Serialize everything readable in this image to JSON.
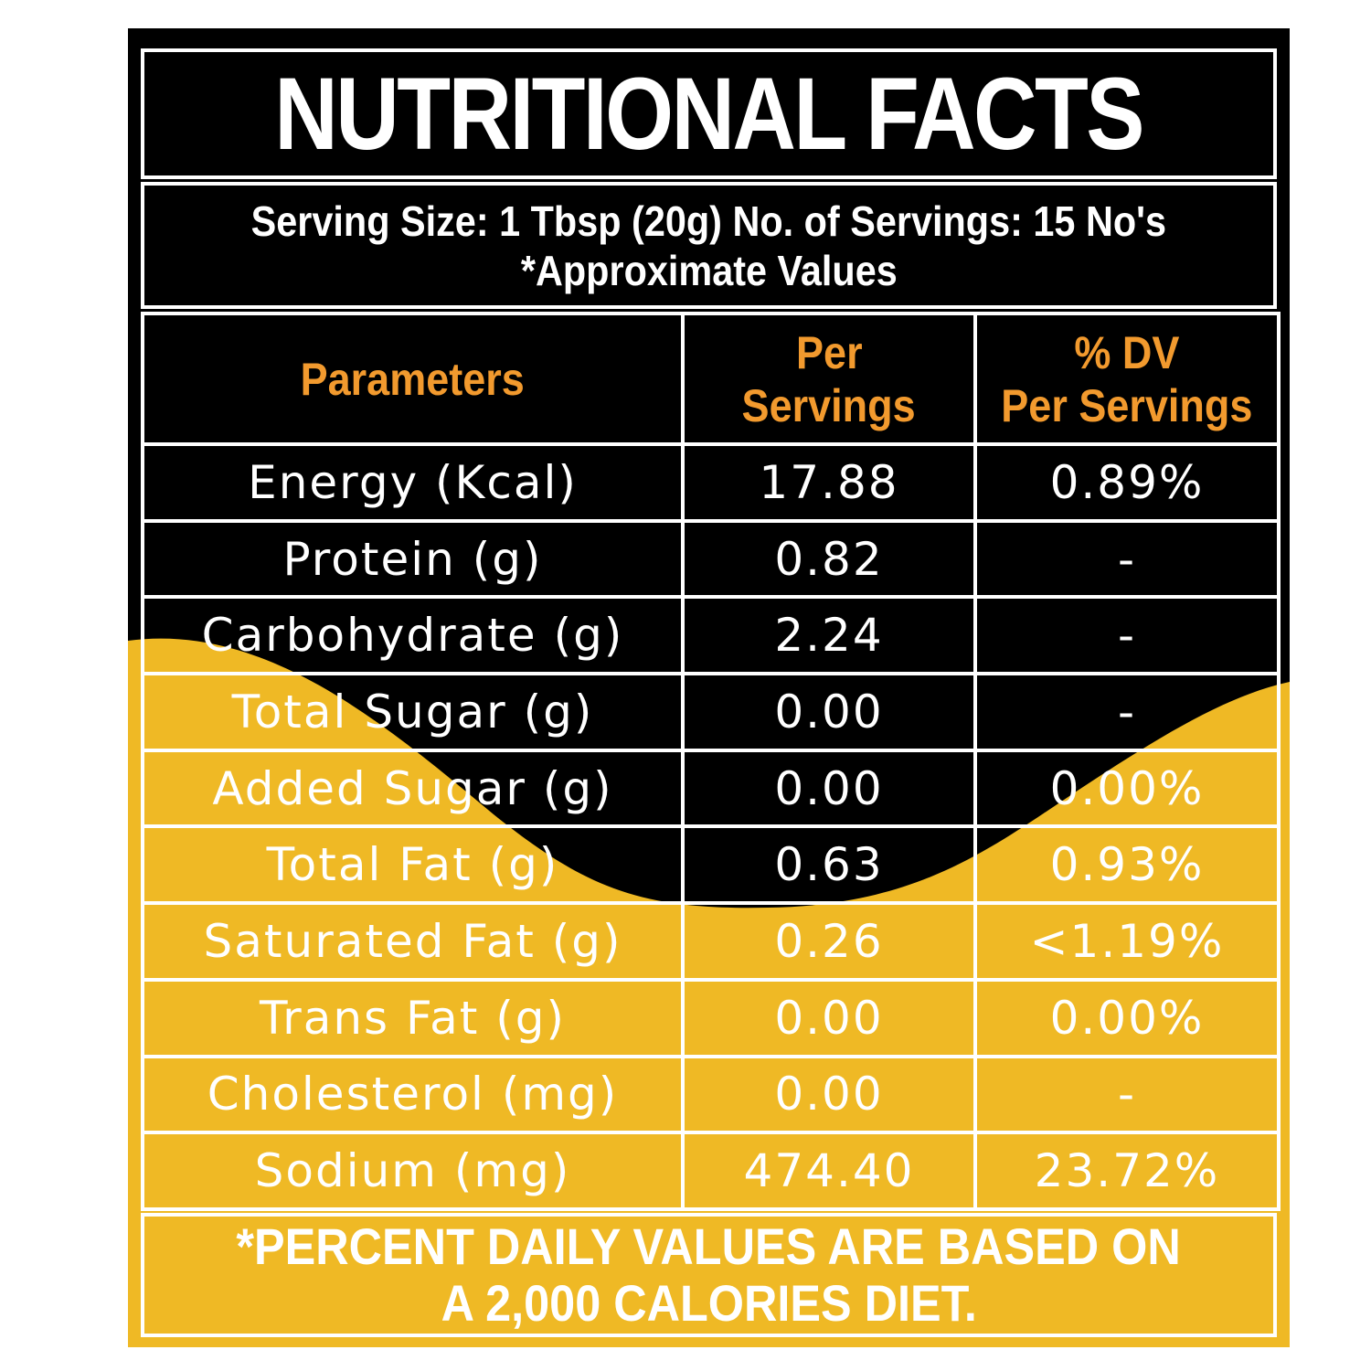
{
  "title": "NUTRITIONAL FACTS",
  "serving": {
    "line1": "Serving Size: 1 Tbsp (20g) No. of Servings: 15 No's",
    "line2": "*Approximate Values"
  },
  "table": {
    "headers": {
      "parameters": "Parameters",
      "per_servings_1": "Per",
      "per_servings_2": "Servings",
      "dv_1": "% DV",
      "dv_2": "Per Servings"
    },
    "rows": [
      {
        "name": "Energy (Kcal)",
        "per": "17.88",
        "dv": "0.89%"
      },
      {
        "name": "Protein (g)",
        "per": "0.82",
        "dv": "-"
      },
      {
        "name": "Carbohydrate (g)",
        "per": "2.24",
        "dv": "-"
      },
      {
        "name": "Total Sugar (g)",
        "per": "0.00",
        "dv": "-"
      },
      {
        "name": "Added Sugar (g)",
        "per": "0.00",
        "dv": "0.00%"
      },
      {
        "name": "Total Fat (g)",
        "per": "0.63",
        "dv": "0.93%"
      },
      {
        "name": "Saturated Fat (g)",
        "per": "0.26",
        "dv": "<1.19%"
      },
      {
        "name": "Trans Fat (g)",
        "per": "0.00",
        "dv": "0.00%"
      },
      {
        "name": "Cholesterol (mg)",
        "per": "0.00",
        "dv": "-"
      },
      {
        "name": "Sodium (mg)",
        "per": "474.40",
        "dv": "23.72%"
      }
    ]
  },
  "footer": {
    "line1": "*PERCENT DAILY VALUES ARE BASED ON",
    "line2": "A 2,000 CALORIES DIET."
  },
  "colors": {
    "background": "#000000",
    "accent_yellow": "#efb925",
    "header_orange": "#f29a2e",
    "text": "#ffffff"
  }
}
